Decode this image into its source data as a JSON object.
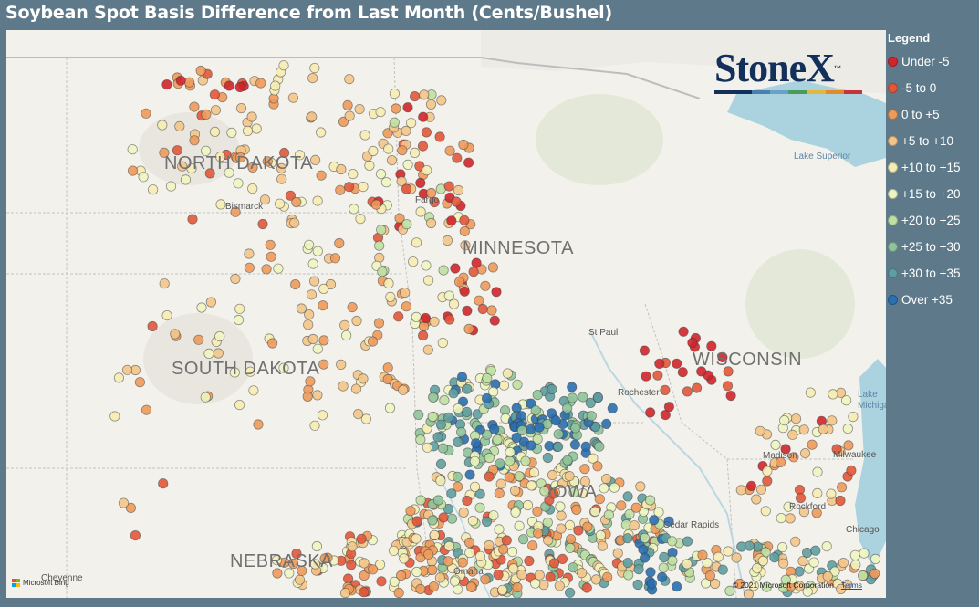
{
  "title": "Soybean Spot Basis Difference from Last Month (Cents/Bushel)",
  "legend": {
    "title": "Legend",
    "items": [
      {
        "label": "Under -5",
        "color": "#d1252b"
      },
      {
        "label": "-5 to 0",
        "color": "#e2573a"
      },
      {
        "label": "0 to +5",
        "color": "#ee9a5a"
      },
      {
        "label": "+5 to +10",
        "color": "#f4c58a"
      },
      {
        "label": "+10 to +15",
        "color": "#f7ecb4"
      },
      {
        "label": "+15 to +20",
        "color": "#eef5c0"
      },
      {
        "label": "+20 to +25",
        "color": "#bfe0a3"
      },
      {
        "label": "+25 to +30",
        "color": "#8fc49a"
      },
      {
        "label": "+30 to +35",
        "color": "#5f9ea0"
      },
      {
        "label": "Over +35",
        "color": "#2a6fb0"
      }
    ]
  },
  "logo": {
    "text": "StoneX",
    "tm": "™"
  },
  "map_labels": {
    "states": [
      "NORTH DAKOTA",
      "MINNESOTA",
      "SOUTH DAKOTA",
      "WISCONSIN",
      "NEBRASKA"
    ],
    "cities": [
      "Bismarck",
      "Fargo",
      "St Paul",
      "Rochester",
      "Madison",
      "Milwaukee",
      "Rockford",
      "Chicago",
      "Cedar Rapids",
      "Omaha",
      "Cheyenne"
    ],
    "water": [
      "Lake Superior",
      "Lake Michigan"
    ],
    "partial": [
      "IOWA"
    ]
  },
  "attribution": {
    "bing": "Microsoft Bing",
    "copyright": "© 2021 Microsoft Corporation",
    "terms": "Terms"
  }
}
